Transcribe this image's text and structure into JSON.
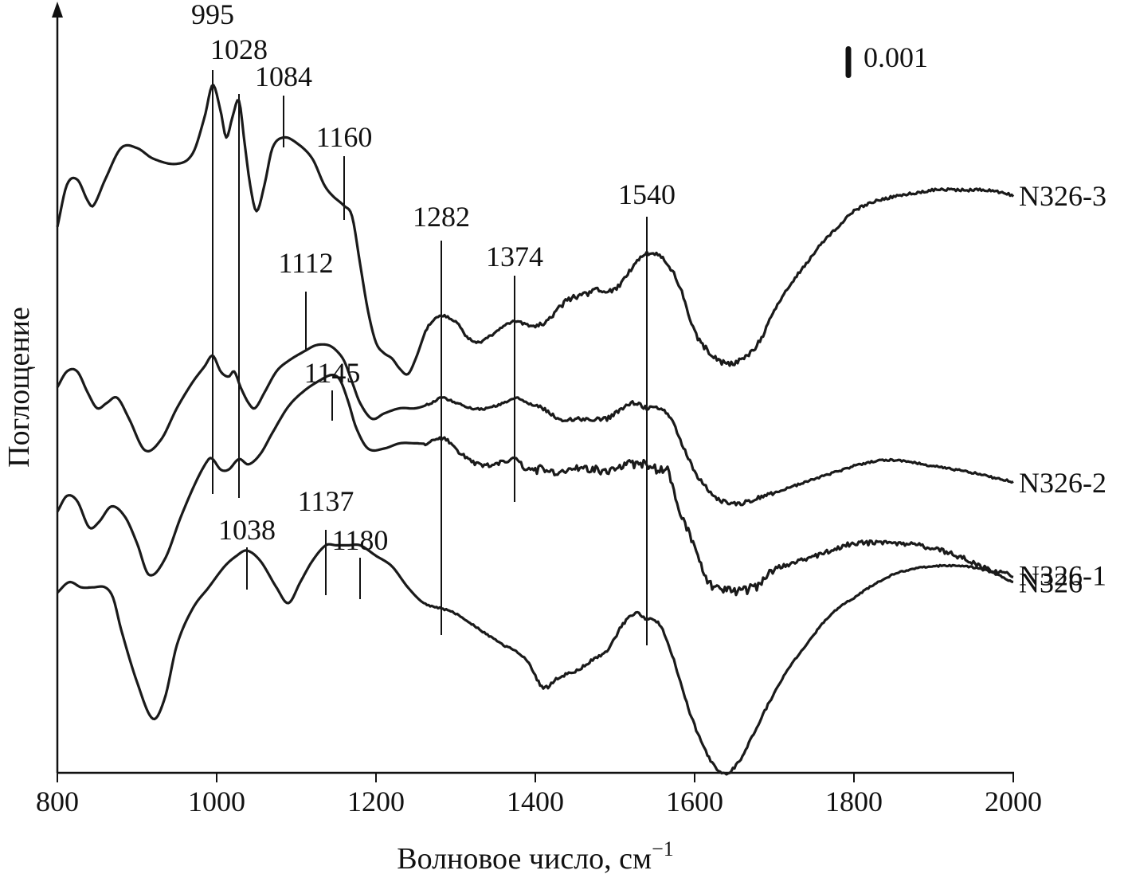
{
  "chart_data": {
    "type": "line",
    "xlabel": "Волновое число, см",
    "xlabel_sup": "−1",
    "ylabel": "Поглощение",
    "xlim": [
      800,
      2000
    ],
    "x_ticks": [
      800,
      1000,
      1200,
      1400,
      1600,
      1800,
      2000
    ],
    "x_tick_labels": [
      "800",
      "1000",
      "1200",
      "1400",
      "1600",
      "1800",
      "2000"
    ],
    "scale_bar": {
      "label": "0.001",
      "value": 0.001
    },
    "grid": false,
    "series": [
      {
        "name": "N326-3",
        "color": "#1a1a1a",
        "x": [
          800,
          812,
          825,
          838,
          845,
          860,
          880,
          900,
          920,
          950,
          970,
          985,
          995,
          1005,
          1012,
          1020,
          1028,
          1035,
          1042,
          1050,
          1060,
          1070,
          1084,
          1100,
          1120,
          1135,
          1145,
          1160,
          1170,
          1180,
          1190,
          1200,
          1210,
          1220,
          1230,
          1240,
          1250,
          1265,
          1282,
          1300,
          1315,
          1330,
          1350,
          1374,
          1400,
          1420,
          1440,
          1460,
          1480,
          1500,
          1520,
          1540,
          1560,
          1580,
          1600,
          1620,
          1640,
          1660,
          1680,
          1700,
          1720,
          1740,
          1760,
          1780,
          1800,
          1830,
          1860,
          1900,
          1940,
          1970,
          2000
        ],
        "y": [
          0.0082,
          0.009,
          0.0091,
          0.0087,
          0.0086,
          0.0091,
          0.0097,
          0.0097,
          0.0095,
          0.0094,
          0.0096,
          0.0103,
          0.0109,
          0.0104,
          0.0099,
          0.0103,
          0.0106,
          0.0098,
          0.009,
          0.0085,
          0.009,
          0.0097,
          0.0099,
          0.0098,
          0.0095,
          0.009,
          0.0088,
          0.0086,
          0.0084,
          0.0075,
          0.0066,
          0.006,
          0.0058,
          0.0057,
          0.0055,
          0.0054,
          0.0057,
          0.0063,
          0.0065,
          0.0064,
          0.0061,
          0.006,
          0.0062,
          0.0064,
          0.0063,
          0.0065,
          0.0068,
          0.0069,
          0.007,
          0.007,
          0.0074,
          0.0077,
          0.0076,
          0.0071,
          0.0062,
          0.0058,
          0.0056,
          0.0057,
          0.006,
          0.0066,
          0.0071,
          0.0075,
          0.0079,
          0.0082,
          0.0085,
          0.0087,
          0.0088,
          0.0089,
          0.0089,
          0.0089,
          0.0088
        ]
      },
      {
        "name": "N326-2",
        "color": "#1a1a1a",
        "x": [
          800,
          812,
          825,
          838,
          850,
          862,
          875,
          890,
          910,
          930,
          950,
          970,
          985,
          995,
          1005,
          1015,
          1022,
          1030,
          1040,
          1048,
          1060,
          1075,
          1090,
          1112,
          1125,
          1140,
          1150,
          1160,
          1170,
          1180,
          1195,
          1210,
          1230,
          1250,
          1270,
          1282,
          1300,
          1320,
          1340,
          1360,
          1374,
          1390,
          1410,
          1430,
          1450,
          1470,
          1490,
          1510,
          1525,
          1540,
          1555,
          1570,
          1585,
          1600,
          1620,
          1640,
          1660,
          1680,
          1700,
          1720,
          1740,
          1760,
          1780,
          1800,
          1830,
          1860,
          1900,
          1940,
          1970,
          2000
        ],
        "y": [
          0.0055,
          0.0058,
          0.0058,
          0.0054,
          0.0051,
          0.0052,
          0.0053,
          0.0049,
          0.0043,
          0.0045,
          0.0051,
          0.0056,
          0.0059,
          0.0061,
          0.0058,
          0.0057,
          0.0058,
          0.0055,
          0.0052,
          0.0051,
          0.0054,
          0.0058,
          0.006,
          0.0062,
          0.0063,
          0.0063,
          0.0062,
          0.006,
          0.0056,
          0.0052,
          0.0049,
          0.005,
          0.0051,
          0.0051,
          0.0052,
          0.0053,
          0.0052,
          0.0051,
          0.0051,
          0.0052,
          0.0053,
          0.0052,
          0.0051,
          0.0049,
          0.0049,
          0.0049,
          0.0049,
          0.0051,
          0.0052,
          0.0051,
          0.0051,
          0.0049,
          0.0044,
          0.0039,
          0.0035,
          0.0033,
          0.0033,
          0.0034,
          0.0035,
          0.0036,
          0.0037,
          0.0038,
          0.0039,
          0.004,
          0.0041,
          0.0041,
          0.004,
          0.0039,
          0.0038,
          0.0037
        ]
      },
      {
        "name": "N326-1",
        "color": "#1a1a1a",
        "x": [
          800,
          812,
          825,
          840,
          852,
          868,
          885,
          900,
          915,
          935,
          955,
          975,
          990,
          995,
          1005,
          1015,
          1028,
          1040,
          1055,
          1070,
          1090,
          1110,
          1130,
          1145,
          1155,
          1165,
          1175,
          1190,
          1210,
          1230,
          1250,
          1265,
          1282,
          1300,
          1315,
          1330,
          1350,
          1374,
          1390,
          1410,
          1430,
          1450,
          1470,
          1490,
          1510,
          1525,
          1540,
          1555,
          1565,
          1575,
          1590,
          1605,
          1620,
          1640,
          1660,
          1680,
          1700,
          1720,
          1740,
          1760,
          1780,
          1800,
          1830,
          1860,
          1900,
          1940,
          1970,
          2000
        ],
        "y": [
          0.0033,
          0.0036,
          0.0035,
          0.003,
          0.0031,
          0.0034,
          0.0032,
          0.0027,
          0.0021,
          0.0024,
          0.0032,
          0.0039,
          0.0043,
          0.0043,
          0.0041,
          0.0041,
          0.0043,
          0.0042,
          0.0044,
          0.0048,
          0.0053,
          0.0056,
          0.0058,
          0.0059,
          0.0058,
          0.0054,
          0.0049,
          0.0045,
          0.0045,
          0.0046,
          0.0046,
          0.0046,
          0.0047,
          0.0045,
          0.0043,
          0.0042,
          0.0042,
          0.0043,
          0.0041,
          0.0041,
          0.004,
          0.0041,
          0.0041,
          0.0041,
          0.0042,
          0.0042,
          0.0042,
          0.0041,
          0.0041,
          0.0036,
          0.003,
          0.0024,
          0.0019,
          0.0018,
          0.0018,
          0.0019,
          0.0022,
          0.0023,
          0.0024,
          0.0025,
          0.0026,
          0.0027,
          0.0027,
          0.0027,
          0.0026,
          0.0024,
          0.0022,
          0.0021
        ]
      },
      {
        "name": "N326",
        "color": "#1a1a1a",
        "x": [
          800,
          815,
          830,
          845,
          860,
          870,
          880,
          900,
          920,
          935,
          950,
          970,
          990,
          1010,
          1025,
          1038,
          1055,
          1075,
          1090,
          1105,
          1120,
          1137,
          1150,
          1165,
          1180,
          1200,
          1220,
          1240,
          1260,
          1282,
          1300,
          1330,
          1360,
          1374,
          1390,
          1410,
          1430,
          1450,
          1470,
          1490,
          1510,
          1525,
          1540,
          1555,
          1570,
          1590,
          1610,
          1630,
          1645,
          1660,
          1680,
          1700,
          1720,
          1740,
          1760,
          1780,
          1800,
          1830,
          1860,
          1900,
          1940,
          1970,
          2000
        ],
        "y": [
          0.0007,
          0.0009,
          0.0008,
          0.0008,
          0.0008,
          0.0006,
          0.0,
          -0.001,
          -0.0017,
          -0.0013,
          -0.0003,
          0.0004,
          0.0008,
          0.0012,
          0.0014,
          0.0015,
          0.0013,
          0.0008,
          0.0005,
          0.0009,
          0.0013,
          0.0016,
          0.0016,
          0.0016,
          0.0016,
          0.0014,
          0.0012,
          0.0008,
          0.0005,
          0.0004,
          0.0003,
          0.0,
          -0.0003,
          -0.0004,
          -0.0006,
          -0.0011,
          -0.0009,
          -0.0008,
          -0.0006,
          -0.0004,
          0.0001,
          0.0003,
          0.0002,
          0.0001,
          -0.0004,
          -0.0014,
          -0.0022,
          -0.0027,
          -0.0027,
          -0.0024,
          -0.0018,
          -0.0012,
          -0.0007,
          -0.0003,
          0.0001,
          0.0004,
          0.0006,
          0.0009,
          0.0011,
          0.0012,
          0.0012,
          0.0011,
          0.0009
        ]
      }
    ],
    "peak_markers": [
      {
        "label": "995",
        "x": 995
      },
      {
        "label": "1028",
        "x": 1028
      },
      {
        "label": "1084",
        "x": 1084
      },
      {
        "label": "1160",
        "x": 1160
      },
      {
        "label": "1282",
        "x": 1282
      },
      {
        "label": "1540",
        "x": 1540
      },
      {
        "label": "1112",
        "x": 1112
      },
      {
        "label": "1374",
        "x": 1374
      },
      {
        "label": "1145",
        "x": 1145
      },
      {
        "label": "1137",
        "x": 1137
      },
      {
        "label": "1038",
        "x": 1038
      },
      {
        "label": "1180",
        "x": 1180
      }
    ]
  }
}
